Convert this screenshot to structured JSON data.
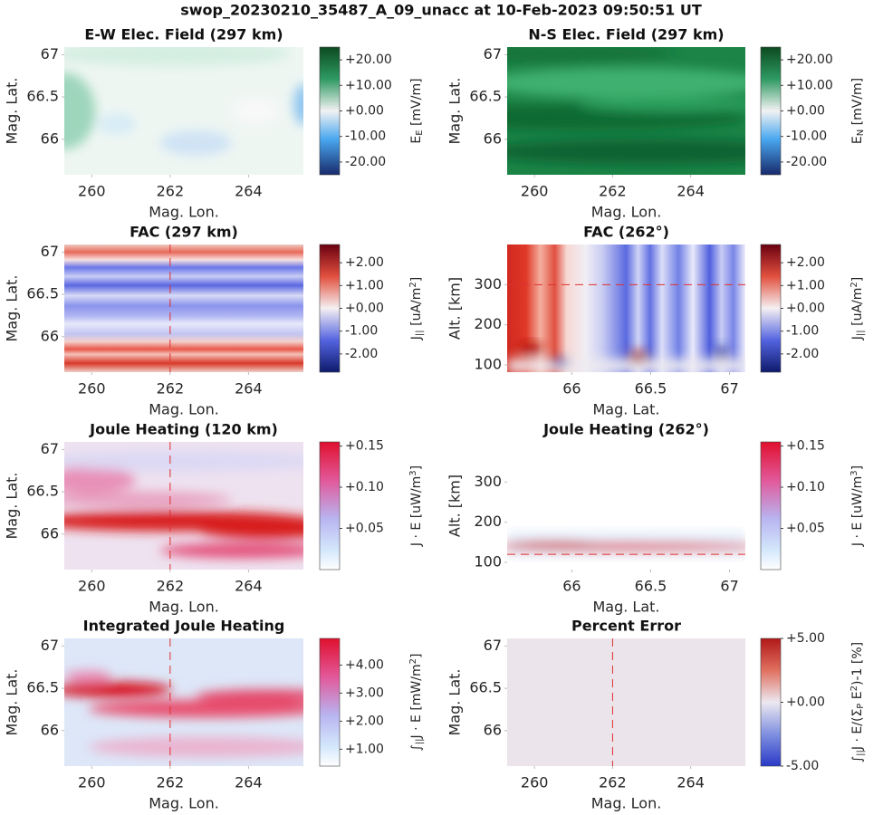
{
  "title": "swop_20230210_35487_A_09_unacc at 10-Feb-2023 09:50:51 UT",
  "chart_data": [
    {
      "type": "heatmap",
      "title": "E-W Elec. Field (297 km)",
      "xlabel": "Mag. Lon.",
      "ylabel": "Mag. Lat.",
      "xlim": [
        259.3,
        265.4
      ],
      "ylim": [
        65.58,
        67.09
      ],
      "xticks": [
        260,
        262,
        264
      ],
      "yticks": [
        66,
        66.5,
        67
      ],
      "clim": [
        -25,
        25
      ],
      "cticks": [
        {
          "value": 20,
          "label": "+20.00"
        },
        {
          "value": 10,
          "label": "+10.00"
        },
        {
          "value": 0,
          "label": "+0.00"
        },
        {
          "value": -10,
          "label": "-10.00"
        },
        {
          "value": -20,
          "label": "-20.00"
        }
      ],
      "colorbar_label": [
        {
          "text": "E"
        },
        {
          "text": "E",
          "sub": true
        },
        {
          "text": " [mV/m]"
        }
      ]
    },
    {
      "type": "heatmap",
      "title": "N-S Elec. Field (297 km)",
      "xlabel": "Mag. Lon.",
      "ylabel": "Mag. Lat.",
      "xlim": [
        259.3,
        265.4
      ],
      "ylim": [
        65.58,
        67.09
      ],
      "xticks": [
        260,
        262,
        264
      ],
      "yticks": [
        66,
        66.5,
        67
      ],
      "clim": [
        -25,
        25
      ],
      "cticks": [
        {
          "value": 20,
          "label": "+20.00"
        },
        {
          "value": 10,
          "label": "+10.00"
        },
        {
          "value": 0,
          "label": "+0.00"
        },
        {
          "value": -10,
          "label": "-10.00"
        },
        {
          "value": -20,
          "label": "-20.00"
        }
      ],
      "colorbar_label": [
        {
          "text": "E"
        },
        {
          "text": "N",
          "sub": true
        },
        {
          "text": " [mV/m]"
        }
      ]
    },
    {
      "type": "heatmap",
      "title": "FAC (297 km)",
      "xlabel": "Mag. Lon.",
      "ylabel": "Mag. Lat.",
      "xlim": [
        259.3,
        265.4
      ],
      "ylim": [
        65.58,
        67.09
      ],
      "xticks": [
        260,
        262,
        264
      ],
      "yticks": [
        66,
        66.5,
        67
      ],
      "vline": 262,
      "clim": [
        -2.8,
        2.8
      ],
      "cticks": [
        {
          "value": 2,
          "label": "+2.00"
        },
        {
          "value": 1,
          "label": "+1.00"
        },
        {
          "value": 0,
          "label": "+0.00"
        },
        {
          "value": -1,
          "label": "-1.00"
        },
        {
          "value": -2,
          "label": "-2.00"
        }
      ],
      "colorbar_label": [
        {
          "text": "J"
        },
        {
          "text": "||",
          "sub": true
        },
        {
          "text": " [uA/m"
        },
        {
          "text": "2",
          "sup": true
        },
        {
          "text": "]"
        }
      ]
    },
    {
      "type": "heatmap",
      "title": "FAC (262°)",
      "xlabel": "Mag. Lat.",
      "ylabel": "Alt. [km]",
      "xlim": [
        65.59,
        67.1
      ],
      "ylim": [
        82,
        400
      ],
      "xticks": [
        66,
        66.5,
        67
      ],
      "yticks": [
        100,
        200,
        300
      ],
      "hline": 300,
      "clim": [
        -2.8,
        2.8
      ],
      "cticks": [
        {
          "value": 2,
          "label": "+2.00"
        },
        {
          "value": 1,
          "label": "+1.00"
        },
        {
          "value": 0,
          "label": "+0.00"
        },
        {
          "value": -1,
          "label": "-1.00"
        },
        {
          "value": -2,
          "label": "-2.00"
        }
      ],
      "colorbar_label": [
        {
          "text": "J"
        },
        {
          "text": "||",
          "sub": true
        },
        {
          "text": " [uA/m"
        },
        {
          "text": "2",
          "sup": true
        },
        {
          "text": "]"
        }
      ]
    },
    {
      "type": "heatmap",
      "title": "Joule Heating (120 km)",
      "xlabel": "Mag. Lon.",
      "ylabel": "Mag. Lat.",
      "xlim": [
        259.3,
        265.4
      ],
      "ylim": [
        65.58,
        67.09
      ],
      "xticks": [
        260,
        262,
        264
      ],
      "yticks": [
        66,
        66.5,
        67
      ],
      "vline": 262,
      "clim": [
        0,
        0.155
      ],
      "cticks": [
        {
          "value": 0.15,
          "label": "+0.15"
        },
        {
          "value": 0.1,
          "label": "+0.10"
        },
        {
          "value": 0.05,
          "label": "+0.05"
        }
      ],
      "colorbar_label": [
        {
          "text": "J · E [uW/m"
        },
        {
          "text": "3",
          "sup": true
        },
        {
          "text": "]"
        }
      ]
    },
    {
      "type": "heatmap",
      "title": "Joule Heating (262°)",
      "xlabel": "Mag. Lat.",
      "ylabel": "Alt. [km]",
      "xlim": [
        65.59,
        67.1
      ],
      "ylim": [
        82,
        400
      ],
      "xticks": [
        66,
        66.5,
        67
      ],
      "yticks": [
        100,
        200,
        300
      ],
      "hline": 120,
      "clim": [
        0,
        0.155
      ],
      "cticks": [
        {
          "value": 0.15,
          "label": "+0.15"
        },
        {
          "value": 0.1,
          "label": "+0.10"
        },
        {
          "value": 0.05,
          "label": "+0.05"
        }
      ],
      "colorbar_label": [
        {
          "text": "J · E [uW/m"
        },
        {
          "text": "3",
          "sup": true
        },
        {
          "text": "]"
        }
      ]
    },
    {
      "type": "heatmap",
      "title": "Integrated Joule Heating",
      "xlabel": "Mag. Lon.",
      "ylabel": "Mag. Lat.",
      "xlim": [
        259.3,
        265.4
      ],
      "ylim": [
        65.58,
        67.09
      ],
      "xticks": [
        260,
        262,
        264
      ],
      "yticks": [
        66,
        66.5,
        67
      ],
      "vline": 262,
      "clim": [
        0.4,
        4.95
      ],
      "cticks": [
        {
          "value": 4,
          "label": "+4.00"
        },
        {
          "value": 3,
          "label": "+3.00"
        },
        {
          "value": 2,
          "label": "+2.00"
        },
        {
          "value": 1,
          "label": "+1.00"
        }
      ],
      "colorbar_label": [
        {
          "text": "∫"
        },
        {
          "text": "||",
          "sub": true
        },
        {
          "text": "J · E [mW/m"
        },
        {
          "text": "2",
          "sup": true
        },
        {
          "text": "]"
        }
      ]
    },
    {
      "type": "heatmap",
      "title": "Percent Error",
      "xlabel": "Mag. Lon.",
      "ylabel": "Mag. Lat.",
      "xlim": [
        259.3,
        265.4
      ],
      "ylim": [
        65.58,
        67.09
      ],
      "xticks": [
        260,
        262,
        264
      ],
      "yticks": [
        66,
        66.5,
        67
      ],
      "vline": 262,
      "clim": [
        -5,
        5
      ],
      "cticks": [
        {
          "value": 5,
          "label": "+5.00"
        },
        {
          "value": 0,
          "label": "+0.00"
        },
        {
          "value": -5,
          "label": "-5.00"
        }
      ],
      "colorbar_label": [
        {
          "text": "∫"
        },
        {
          "text": "||",
          "sub": true
        },
        {
          "text": "J · E/(Σ"
        },
        {
          "text": "P",
          "sub": true
        },
        {
          "text": " E"
        },
        {
          "text": "2",
          "sup": true
        },
        {
          "text": ")-1 [%]"
        }
      ]
    }
  ]
}
